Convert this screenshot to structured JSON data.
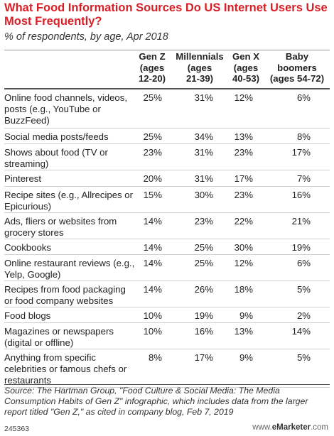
{
  "chart_data": {
    "type": "table",
    "title": "What Food Information Sources Do US Internet Users Use Most Frequently?",
    "subtitle": "% of respondents, by age, Apr 2018",
    "columns": [
      "Gen Z\n(ages\n12-20)",
      "Millennials\n(ages\n21-39)",
      "Gen X\n(ages\n40-53)",
      "Baby\nboomers\n(ages 54-72)"
    ],
    "rows": [
      {
        "label": "Online food channels, videos, posts (e.g., YouTube or BuzzFeed)",
        "values": [
          "25%",
          "31%",
          "12%",
          "6%"
        ]
      },
      {
        "label": "Social media posts/feeds",
        "values": [
          "25%",
          "34%",
          "13%",
          "8%"
        ]
      },
      {
        "label": "Shows about food (TV or streaming)",
        "values": [
          "23%",
          "31%",
          "23%",
          "17%"
        ]
      },
      {
        "label": "Pinterest",
        "values": [
          "20%",
          "31%",
          "17%",
          "7%"
        ]
      },
      {
        "label": "Recipe sites (e.g., Allrecipes or Epicurious)",
        "values": [
          "15%",
          "30%",
          "23%",
          "16%"
        ]
      },
      {
        "label": "Ads, fliers or websites from grocery stores",
        "values": [
          "14%",
          "23%",
          "22%",
          "21%"
        ]
      },
      {
        "label": "Cookbooks",
        "values": [
          "14%",
          "25%",
          "30%",
          "19%"
        ]
      },
      {
        "label": "Online restaurant reviews (e.g., Yelp, Google)",
        "values": [
          "14%",
          "25%",
          "12%",
          "6%"
        ]
      },
      {
        "label": "Recipes from food packaging or food company websites",
        "values": [
          "14%",
          "26%",
          "18%",
          "5%"
        ]
      },
      {
        "label": "Food blogs",
        "values": [
          "10%",
          "19%",
          "9%",
          "2%"
        ]
      },
      {
        "label": "Magazines or newspapers (digital or offline)",
        "values": [
          "10%",
          "16%",
          "13%",
          "14%"
        ]
      },
      {
        "label": "Anything from specific celebrities or famous chefs or restaurants",
        "values": [
          "8%",
          "17%",
          "9%",
          "5%"
        ]
      }
    ]
  },
  "source": "Source: The Hartman Group, \"Food Culture & Social Media: The Media Consumption Habits of Gen Z\" infographic, which includes data from the larger report titled \"Gen Z,\" as cited in company blog, Feb 7, 2019",
  "footer": {
    "chart_id": "245363",
    "brand_prefix": "www.",
    "brand_name": "eMarketer",
    "brand_suffix": ".com"
  },
  "colors": {
    "title": "#d91f26"
  }
}
